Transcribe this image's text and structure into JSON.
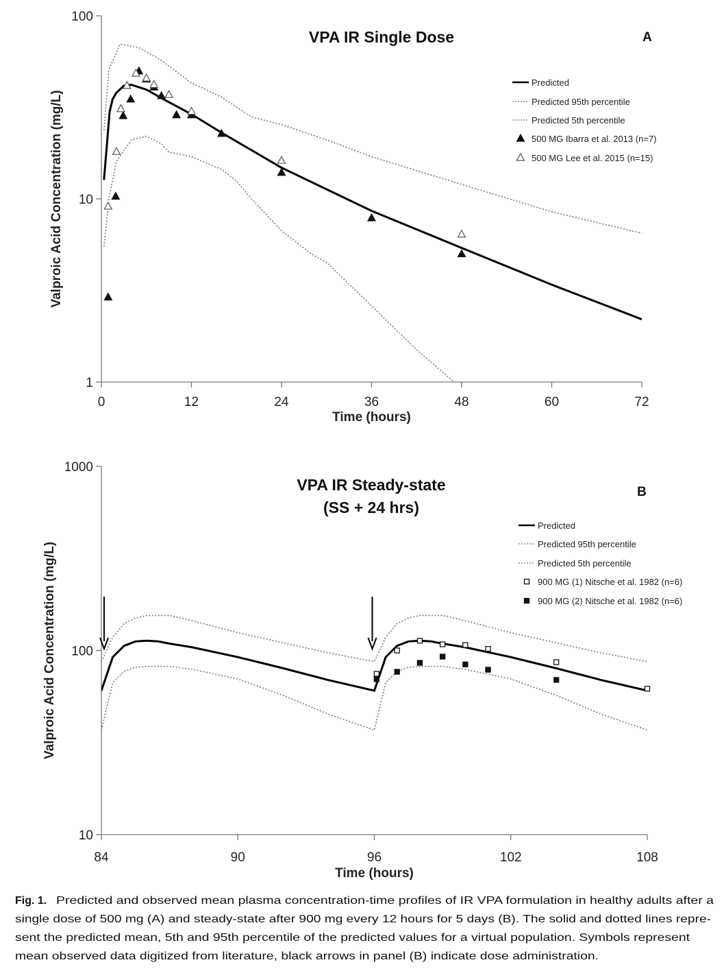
{
  "chart_data": [
    {
      "type": "line",
      "panel_label": "A",
      "title": "VPA IR Single Dose",
      "xlabel": "Time (hours)",
      "ylabel": "Valproic Acid Concentration (mg/L)",
      "xlim": [
        0,
        72
      ],
      "xticks": [
        0,
        12,
        24,
        36,
        48,
        60,
        72
      ],
      "ylim": [
        1,
        100
      ],
      "yscale": "log",
      "yticks": [
        1,
        10,
        100
      ],
      "grid": false,
      "legend_position": "top-right",
      "series": [
        {
          "name": "Predicted",
          "style": "solid",
          "x": [
            0.35,
            1.1,
            1.5,
            2,
            3,
            4,
            6,
            8,
            12,
            16,
            24,
            36,
            48,
            60,
            72
          ],
          "y": [
            12.7,
            30,
            35,
            38,
            41.5,
            42,
            39.5,
            35.5,
            29,
            23,
            14.8,
            8.6,
            5.4,
            3.4,
            2.2
          ]
        },
        {
          "name": "Predicted 95th percentile",
          "style": "dotted",
          "x": [
            0.35,
            1,
            2.5,
            5,
            8,
            12,
            16,
            20,
            24,
            30,
            36,
            48,
            60,
            72
          ],
          "y": [
            23.7,
            51,
            70,
            67,
            57,
            43,
            36,
            28,
            25.5,
            21,
            17,
            12,
            8.5,
            6.5
          ]
        },
        {
          "name": "Predicted 5th percentile",
          "style": "dotted",
          "x": [
            0.35,
            1,
            2,
            4,
            6,
            8,
            9,
            12,
            16,
            18,
            20,
            24,
            28,
            30,
            36,
            42,
            47
          ],
          "y": [
            5.5,
            10,
            16,
            21,
            22,
            20,
            18,
            17,
            14.5,
            12.5,
            10,
            6.7,
            5,
            4.5,
            2.6,
            1.5,
            1.0
          ]
        },
        {
          "name": "500 MG Ibarra et al. 2013 (n=7)",
          "marker": "filled-triangle",
          "x": [
            0.9,
            1.9,
            2.9,
            3.9,
            5,
            6,
            7,
            8,
            10,
            12,
            16,
            24,
            36,
            48
          ],
          "y": [
            2.9,
            10.3,
            28.4,
            35,
            49.8,
            45,
            40.7,
            36.5,
            28.7,
            28.7,
            22.7,
            13.9,
            7.85,
            5.0
          ]
        },
        {
          "name": "500 MG Lee et al. 2015 (n=15)",
          "marker": "open-triangle",
          "x": [
            0.9,
            2,
            2.6,
            3.4,
            4.6,
            6,
            7,
            9,
            12,
            24,
            48
          ],
          "y": [
            9.1,
            18.1,
            31,
            41.5,
            48.4,
            45.6,
            42,
            37,
            30,
            16.2,
            6.4
          ]
        }
      ]
    },
    {
      "type": "line",
      "panel_label": "B",
      "title": "VPA IR Steady-state",
      "subtitle": "(SS + 24 hrs)",
      "xlabel": "Time (hours)",
      "ylabel": "Valproic Acid Concentration (mg/L)",
      "xlim": [
        84,
        108
      ],
      "xticks": [
        84,
        90,
        96,
        102,
        108
      ],
      "ylim": [
        10,
        1000
      ],
      "yscale": "log",
      "yticks": [
        10,
        100,
        1000
      ],
      "grid": false,
      "legend_position": "top-right",
      "dose_arrows_at": [
        84,
        96
      ],
      "series": [
        {
          "name": "Predicted",
          "style": "solid",
          "x": [
            84,
            84.5,
            85,
            85.5,
            86,
            86.5,
            87,
            88,
            90,
            92,
            94,
            96,
            96.5,
            97,
            97.5,
            98,
            98.5,
            99,
            100,
            102,
            104,
            106,
            108
          ],
          "y": [
            60.5,
            92,
            106,
            112,
            113,
            112,
            109,
            104,
            92,
            80,
            69,
            60.5,
            92,
            106,
            112,
            113,
            112,
            109,
            104,
            92,
            80,
            69,
            60.5
          ]
        },
        {
          "name": "Predicted 95th percentile",
          "style": "dotted",
          "x": [
            84,
            84.5,
            85,
            85.5,
            86,
            87,
            88,
            90,
            92,
            94,
            96,
            96.5,
            97,
            97.5,
            98,
            99,
            100,
            102,
            104,
            106,
            108
          ],
          "y": [
            87,
            118,
            140,
            150,
            155,
            155,
            145,
            125,
            110,
            97,
            87,
            118,
            140,
            150,
            155,
            155,
            145,
            125,
            110,
            97,
            87
          ]
        },
        {
          "name": "Predicted 5th percentile",
          "style": "dotted",
          "x": [
            84,
            84.5,
            85,
            85.5,
            86,
            87,
            88,
            90,
            92,
            94,
            96,
            96.5,
            97,
            97.5,
            98,
            99,
            100,
            102,
            104,
            106,
            108
          ],
          "y": [
            37,
            67,
            77,
            81,
            82,
            82,
            79,
            70,
            57,
            45,
            37,
            67,
            77,
            81,
            82,
            82,
            79,
            70,
            57,
            45,
            37
          ]
        },
        {
          "name": "900 MG (1) Nitsche et al. 1982 (n=6)",
          "marker": "open-square",
          "x": [
            96.1,
            97,
            98,
            99,
            100,
            101,
            104,
            108
          ],
          "y": [
            74.7,
            100,
            113,
            108,
            107,
            102,
            86.4,
            62
          ]
        },
        {
          "name": "900 MG (2) Nitsche et al. 1982 (n=6)",
          "marker": "filled-square",
          "x": [
            96.1,
            97,
            98,
            99,
            100,
            101,
            104
          ],
          "y": [
            69.8,
            76.6,
            85.7,
            92.6,
            84,
            78.6,
            69.2
          ]
        }
      ]
    }
  ],
  "caption": {
    "label": "Fig. 1.",
    "lines": [
      "Predicted and observed mean plasma concentration-time profiles of IR VPA formulation in healthy adults after a",
      "single dose of 500 mg (A) and steady-state after 900 mg every 12 hours for 5 days (B). The solid and dotted lines repre-",
      "sent the predicted mean, 5th and 95th percentile of the predicted values for a virtual population. Symbols represent",
      "mean observed data digitized from literature, black arrows in panel (B) indicate dose administration."
    ]
  }
}
